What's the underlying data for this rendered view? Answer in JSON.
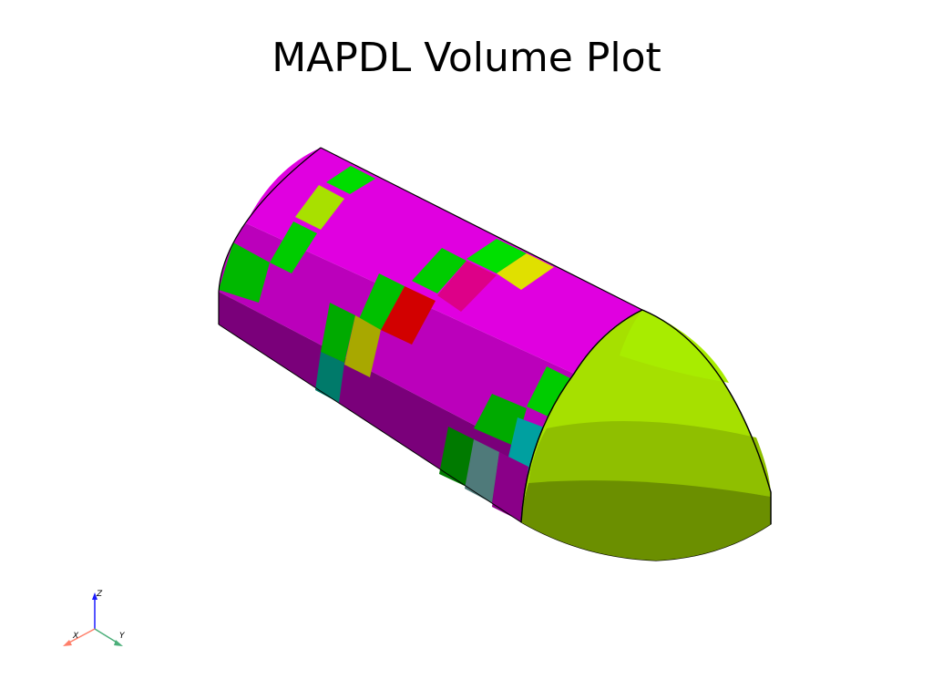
{
  "title": "MAPDL Volume Plot",
  "colors": {
    "background": "#ffffff",
    "magenta_top": "#e000e0",
    "magenta_mid": "#b300b3",
    "magenta_low": "#7a007a",
    "green": "#00cc00",
    "yellow_green": "#a0e000",
    "red": "#d20000",
    "yellow": "#e0e000",
    "teal": "#00a0a0",
    "endcap_light": "#a6e000",
    "endcap_dark": "#5f7f00"
  },
  "axes_triad": {
    "x_label": "X",
    "y_label": "Y",
    "z_label": "Z",
    "x_color": "#ff7f6a",
    "y_color": "#4caf7a",
    "z_color": "#1a1aff"
  }
}
